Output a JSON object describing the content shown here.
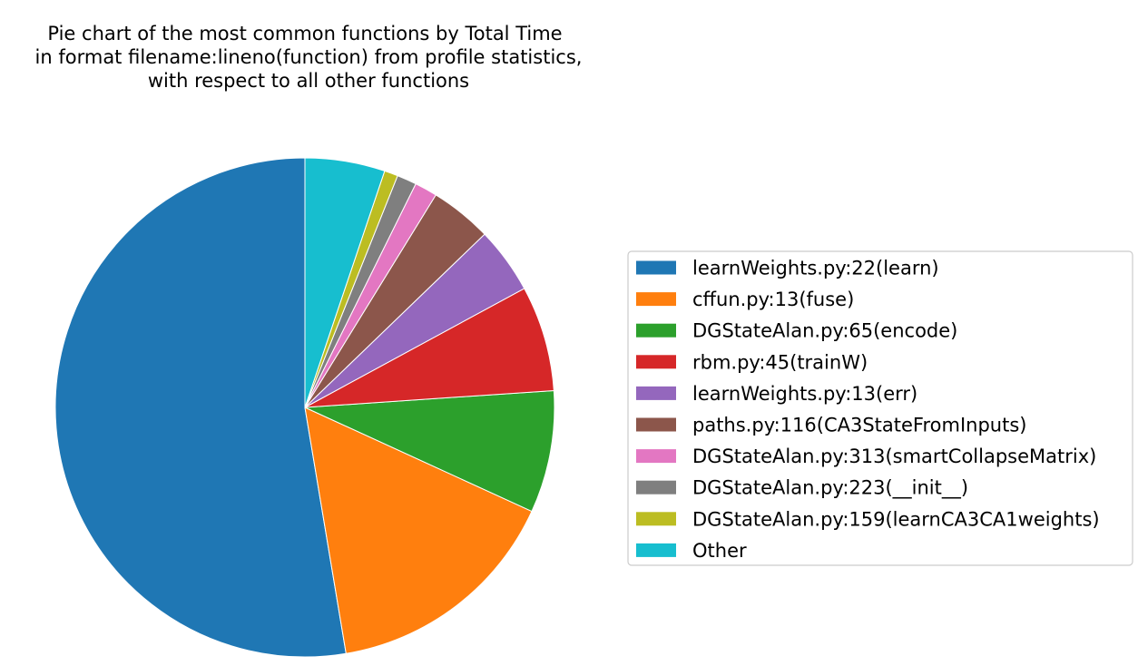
{
  "chart_data": {
    "type": "pie",
    "title": [
      "Pie chart of the most common functions by Total Time",
      "in format filename:lineno(function) from profile statistics,",
      "with respect to all other functions"
    ],
    "start_angle_deg": 90,
    "direction": "counterclockwise",
    "legend_position": "right",
    "slices": [
      {
        "label": "learnWeights.py:22(learn)",
        "value": 53.9,
        "color": "#1f77b4"
      },
      {
        "label": "cffun.py:13(fuse)",
        "value": 15.9,
        "color": "#ff7f0e"
      },
      {
        "label": "DGStateAlan.py:65(encode)",
        "value": 8.1,
        "color": "#2ca02c"
      },
      {
        "label": "rbm.py:45(trainW)",
        "value": 7.0,
        "color": "#d62728"
      },
      {
        "label": "learnWeights.py:13(err)",
        "value": 4.4,
        "color": "#9467bd"
      },
      {
        "label": "paths.py:116(CA3StateFromInputs)",
        "value": 4.1,
        "color": "#8c564b"
      },
      {
        "label": "DGStateAlan.py:313(smartCollapseMatrix)",
        "value": 1.5,
        "color": "#e377c2"
      },
      {
        "label": "DGStateAlan.py:223(__init__)",
        "value": 1.3,
        "color": "#7f7f7f"
      },
      {
        "label": "DGStateAlan.py:159(learnCA3CA1weights)",
        "value": 0.9,
        "color": "#bcbd22"
      },
      {
        "label": "Other",
        "value": 5.3,
        "color": "#17becf"
      }
    ]
  }
}
